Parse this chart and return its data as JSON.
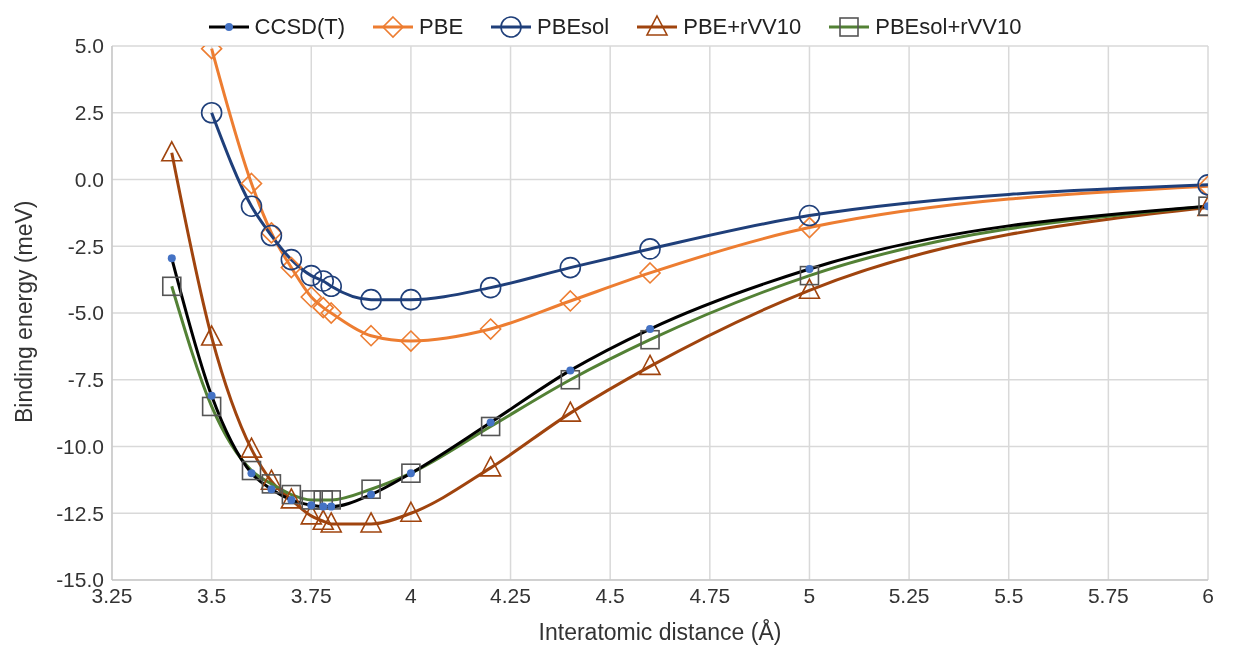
{
  "chart_data": {
    "type": "line",
    "xlabel": "Interatomic distance (Å)",
    "ylabel": "Binding energy (meV)",
    "xlim": [
      3.25,
      6
    ],
    "xticks": [
      3.25,
      3.5,
      3.75,
      4,
      4.25,
      4.5,
      4.75,
      5,
      5.25,
      5.5,
      5.75,
      6
    ],
    "ylim": [
      -15,
      5
    ],
    "yticks": [
      {
        "value": -15,
        "label": "-15.0"
      },
      {
        "value": -12.5,
        "label": "-12.5"
      },
      {
        "value": -10,
        "label": "-10.0"
      },
      {
        "value": -7.5,
        "label": "-7.5"
      },
      {
        "value": -5,
        "label": "-5.0"
      },
      {
        "value": -2.5,
        "label": "-2.5"
      },
      {
        "value": 0,
        "label": "0.0"
      },
      {
        "value": 2.5,
        "label": "2.5"
      },
      {
        "value": 5,
        "label": "5.0"
      }
    ],
    "grid": true,
    "legend": "top",
    "line_style": "solid",
    "series": [
      {
        "name": "CCSD(T)",
        "color": "#000000",
        "marker": "circle",
        "x": [
          3.4,
          3.5,
          3.6,
          3.65,
          3.7,
          3.75,
          3.78,
          3.8,
          3.9,
          4,
          4.2,
          4.4,
          4.6,
          5,
          6
        ],
        "values": [
          -2.95,
          -8.1,
          -11.0,
          -11.6,
          -12.0,
          -12.2,
          -12.25,
          -12.25,
          -11.8,
          -11.0,
          -9.1,
          -7.15,
          -5.6,
          -3.35,
          -1.0
        ]
      },
      {
        "name": "PBE",
        "color": "#ed7d31",
        "marker": "diamond",
        "x": [
          3.5,
          3.6,
          3.65,
          3.7,
          3.75,
          3.78,
          3.8,
          3.9,
          4,
          4.2,
          4.4,
          4.6,
          5,
          6
        ],
        "values": [
          4.9,
          -0.15,
          -2.0,
          -3.3,
          -4.4,
          -4.8,
          -5.0,
          -5.85,
          -6.05,
          -5.6,
          -4.55,
          -3.5,
          -1.8,
          -0.25
        ]
      },
      {
        "name": "PBEsol",
        "color": "#1f3f7a",
        "marker": "circle",
        "x": [
          3.5,
          3.6,
          3.65,
          3.7,
          3.75,
          3.78,
          3.8,
          3.9,
          4,
          4.2,
          4.4,
          4.6,
          5,
          6
        ],
        "values": [
          2.5,
          -1.0,
          -2.1,
          -3.0,
          -3.6,
          -3.8,
          -4.0,
          -4.5,
          -4.5,
          -4.05,
          -3.3,
          -2.6,
          -1.35,
          -0.2
        ]
      },
      {
        "name": "PBE+rVV10",
        "color": "#a0440e",
        "marker": "triangle",
        "x": [
          3.4,
          3.5,
          3.6,
          3.65,
          3.7,
          3.75,
          3.78,
          3.8,
          3.9,
          4,
          4.2,
          4.4,
          4.6,
          5,
          6
        ],
        "values": [
          1.0,
          -5.9,
          -10.1,
          -11.3,
          -12.0,
          -12.6,
          -12.8,
          -12.9,
          -12.9,
          -12.5,
          -10.8,
          -8.75,
          -7.0,
          -4.15,
          -1.05
        ]
      },
      {
        "name": "PBEsol+rVV10",
        "color": "#538135",
        "marker": "square",
        "x": [
          3.4,
          3.5,
          3.6,
          3.65,
          3.7,
          3.75,
          3.78,
          3.8,
          3.9,
          4,
          4.2,
          4.4,
          4.6,
          5,
          6
        ],
        "values": [
          -4.0,
          -8.5,
          -10.9,
          -11.4,
          -11.8,
          -12.0,
          -12.0,
          -12.0,
          -11.6,
          -11.0,
          -9.25,
          -7.5,
          -6.0,
          -3.6,
          -1.0
        ]
      }
    ]
  }
}
